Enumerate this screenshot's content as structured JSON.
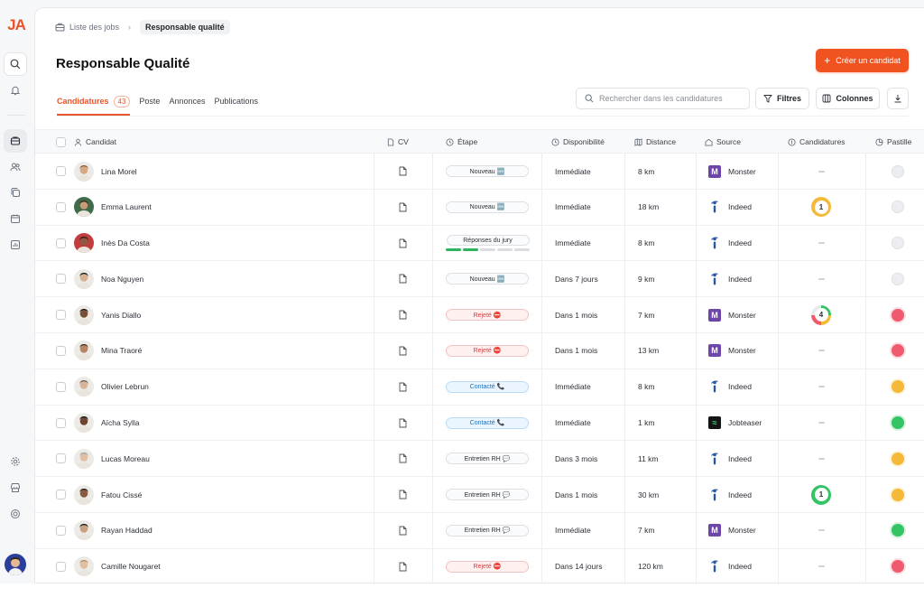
{
  "app": {
    "logo": "JA"
  },
  "breadcrumb": {
    "home": "Liste des jobs",
    "current": "Responsable qualité"
  },
  "page": {
    "title": "Responsable Qualité"
  },
  "actions": {
    "create": "Créer un candidat",
    "filters": "Filtres",
    "columns": "Colonnes"
  },
  "search": {
    "placeholder": "Rechercher dans les candidatures",
    "value": ""
  },
  "tabs": [
    {
      "label": "Candidatures",
      "count": "43"
    },
    {
      "label": "Poste"
    },
    {
      "label": "Annonces"
    },
    {
      "label": "Publications"
    }
  ],
  "columns": {
    "candidat": "Candidat",
    "cv": "CV",
    "etape": "Étape",
    "disponibilite": "Disponibilité",
    "distance": "Distance",
    "source": "Source",
    "candidatures": "Candidatures",
    "pastille": "Pastille"
  },
  "colors": {
    "accent": "#f0531f",
    "green": "#34c466",
    "orange": "#f5b93a",
    "red": "#ef5b6e",
    "grey": "#e6e8eb"
  },
  "rows": [
    {
      "name": "Lina Morel",
      "stage": "Nouveau 🆕",
      "stage_type": "new",
      "dispo": "Immédiate",
      "distance": "8 km",
      "source": "Monster",
      "src": "monster",
      "cand": "",
      "pastille": "grey",
      "skin": "#d7a883",
      "hair": "#8a5a35"
    },
    {
      "name": "Emma Laurent",
      "stage": "Nouveau 🆕",
      "stage_type": "new",
      "dispo": "Immédiate",
      "distance": "18 km",
      "source": "Indeed",
      "src": "indeed",
      "cand": "1",
      "cand_color": "#f5b93a",
      "pastille": "grey",
      "skin": "#c99a78",
      "hair": "#3b2a1d",
      "bg": "#3f6b4a"
    },
    {
      "name": "Inès Da Costa",
      "stage": "Réponses du jury",
      "stage_type": "jury",
      "dispo": "Immédiate",
      "distance": "8 km",
      "source": "Indeed",
      "src": "indeed",
      "cand": "",
      "pastille": "grey",
      "skin": "#8e5a44",
      "hair": "#2a1a14",
      "bg": "#c23d3d"
    },
    {
      "name": "Noa Nguyen",
      "stage": "Nouveau 🆕",
      "stage_type": "new",
      "dispo": "Dans 7 jours",
      "distance": "9 km",
      "source": "Indeed",
      "src": "indeed",
      "cand": "",
      "pastille": "grey",
      "skin": "#d9b08f",
      "hair": "#141414"
    },
    {
      "name": "Yanis Diallo",
      "stage": "Rejeté ⛔",
      "stage_type": "rejet",
      "dispo": "Dans 1 mois",
      "distance": "7 km",
      "source": "Monster",
      "src": "monster",
      "cand": "4",
      "cand_color": "multi",
      "pastille": "red",
      "skin": "#7a4f38",
      "hair": "#1c140f"
    },
    {
      "name": "Mina Traoré",
      "stage": "Rejeté ⛔",
      "stage_type": "rejet",
      "dispo": "Dans 1 mois",
      "distance": "13 km",
      "source": "Monster",
      "src": "monster",
      "cand": "",
      "pastille": "red",
      "skin": "#b98560",
      "hair": "#4a2b18"
    },
    {
      "name": "Olivier Lebrun",
      "stage": "Contacté 📞",
      "stage_type": "contact",
      "dispo": "Immédiate",
      "distance": "8 km",
      "source": "Indeed",
      "src": "indeed",
      "cand": "",
      "pastille": "orange",
      "skin": "#d8b599",
      "hair": "#6b5a4a"
    },
    {
      "name": "Aïcha Sylla",
      "stage": "Contacté 📞",
      "stage_type": "contact",
      "dispo": "Immédiate",
      "distance": "1 km",
      "source": "Jobteaser",
      "src": "jobteaser",
      "cand": "",
      "pastille": "green",
      "skin": "#6e4330",
      "hair": "#120c08"
    },
    {
      "name": "Lucas Moreau",
      "stage": "Entretien RH 💬",
      "stage_type": "new",
      "dispo": "Dans 3 mois",
      "distance": "11 km",
      "source": "Indeed",
      "src": "indeed",
      "cand": "",
      "pastille": "orange",
      "skin": "#e0bea3",
      "hair": "#a8a29b"
    },
    {
      "name": "Fatou Cissé",
      "stage": "Entretien RH 💬",
      "stage_type": "new",
      "dispo": "Dans 1 mois",
      "distance": "30 km",
      "source": "Indeed",
      "src": "indeed",
      "cand": "1",
      "cand_color": "#34c466",
      "pastille": "orange",
      "skin": "#8a5a40",
      "hair": "#241710"
    },
    {
      "name": "Rayan Haddad",
      "stage": "Entretien RH 💬",
      "stage_type": "new",
      "dispo": "Immédiate",
      "distance": "7 km",
      "source": "Monster",
      "src": "monster",
      "cand": "",
      "pastille": "green",
      "skin": "#c9a080",
      "hair": "#1e1712"
    },
    {
      "name": "Camille Nougaret",
      "stage": "Rejeté ⛔",
      "stage_type": "rejet",
      "dispo": "Dans 14 jours",
      "distance": "120 km",
      "source": "Indeed",
      "src": "indeed",
      "cand": "",
      "pastille": "red",
      "skin": "#e2bfa2",
      "hair": "#b88a5c"
    }
  ]
}
